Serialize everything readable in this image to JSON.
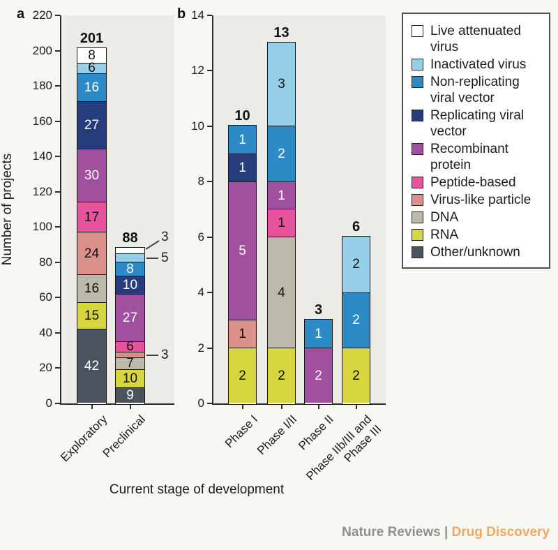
{
  "figure": {
    "panel_a_letter": "a",
    "panel_b_letter": "b",
    "ylabel": "Number of projects",
    "xlabel": "Current stage of development"
  },
  "footer": {
    "journal": "Nature Reviews",
    "separator": " | ",
    "section": "Drug Discovery",
    "journal_color": "#909090",
    "section_color": "#f0a860"
  },
  "palette": {
    "Live attenuated virus": {
      "color": "#ffffff",
      "text": "#111111"
    },
    "Inactivated virus": {
      "color": "#95cfe8",
      "text": "#111111"
    },
    "Non-replicating viral vector": {
      "color": "#2c8bc7",
      "text": "#ffffff"
    },
    "Replicating viral vector": {
      "color": "#263d7d",
      "text": "#ffffff"
    },
    "Recombinant protein": {
      "color": "#a1509f",
      "text": "#ffffff"
    },
    "Peptide-based": {
      "color": "#e8539d",
      "text": "#111111"
    },
    "Virus-like particle": {
      "color": "#db9089",
      "text": "#111111"
    },
    "DNA": {
      "color": "#bcb8aa",
      "text": "#111111"
    },
    "RNA": {
      "color": "#d7d63f",
      "text": "#111111"
    },
    "Other/unknown": {
      "color": "#49545e",
      "text": "#ffffff"
    }
  },
  "legend": {
    "items": [
      {
        "label": "Live attenuated\nvirus",
        "key": "Live attenuated virus"
      },
      {
        "label": "Inactivated virus",
        "key": "Inactivated virus"
      },
      {
        "label": "Non-replicating\nviral vector",
        "key": "Non-replicating viral vector"
      },
      {
        "label": "Replicating viral\nvector",
        "key": "Replicating viral vector"
      },
      {
        "label": "Recombinant\nprotein",
        "key": "Recombinant protein"
      },
      {
        "label": "Peptide-based",
        "key": "Peptide-based"
      },
      {
        "label": "Virus-like particle",
        "key": "Virus-like particle"
      },
      {
        "label": "DNA",
        "key": "DNA"
      },
      {
        "label": "RNA",
        "key": "RNA"
      },
      {
        "label": "Other/unknown",
        "key": "Other/unknown"
      }
    ]
  },
  "chart_data": [
    {
      "panel": "a",
      "type": "bar",
      "stacked": true,
      "ylabel": "Number of projects",
      "ylim": [
        0,
        220
      ],
      "ytick_step": 20,
      "categories": [
        "Exploratory",
        "Preclinical"
      ],
      "totals": [
        201,
        88
      ],
      "series": [
        {
          "name": "Other/unknown",
          "values": [
            42,
            9
          ]
        },
        {
          "name": "RNA",
          "values": [
            15,
            10
          ]
        },
        {
          "name": "DNA",
          "values": [
            16,
            7
          ]
        },
        {
          "name": "Virus-like particle",
          "values": [
            24,
            3
          ]
        },
        {
          "name": "Peptide-based",
          "values": [
            17,
            6
          ]
        },
        {
          "name": "Recombinant protein",
          "values": [
            30,
            27
          ]
        },
        {
          "name": "Replicating viral vector",
          "values": [
            27,
            10
          ]
        },
        {
          "name": "Non-replicating viral vector",
          "values": [
            16,
            8
          ]
        },
        {
          "name": "Inactivated virus",
          "values": [
            6,
            5
          ]
        },
        {
          "name": "Live attenuated virus",
          "values": [
            8,
            3
          ]
        }
      ],
      "callouts": [
        {
          "category": "Preclinical",
          "series": "Live attenuated virus",
          "label": "3",
          "style": "diagonal"
        },
        {
          "category": "Preclinical",
          "series": "Inactivated virus",
          "label": "5",
          "style": "horizontal"
        },
        {
          "category": "Preclinical",
          "series": "Virus-like particle",
          "label": "3",
          "style": "horizontal"
        }
      ]
    },
    {
      "panel": "b",
      "type": "bar",
      "stacked": true,
      "ylim": [
        0,
        14
      ],
      "ytick_step": 2,
      "categories": [
        "Phase I",
        "Phase I/II",
        "Phase II",
        "Phase IIb/III and\nPhase III"
      ],
      "totals": [
        10,
        13,
        3,
        6
      ],
      "series": [
        {
          "name": "Other/unknown",
          "values": [
            0,
            0,
            0,
            0
          ]
        },
        {
          "name": "RNA",
          "values": [
            2,
            2,
            0,
            2
          ]
        },
        {
          "name": "DNA",
          "values": [
            0,
            4,
            0,
            0
          ]
        },
        {
          "name": "Virus-like particle",
          "values": [
            1,
            0,
            0,
            0
          ]
        },
        {
          "name": "Peptide-based",
          "values": [
            0,
            1,
            0,
            0
          ]
        },
        {
          "name": "Recombinant protein",
          "values": [
            5,
            1,
            2,
            0
          ]
        },
        {
          "name": "Replicating viral vector",
          "values": [
            1,
            0,
            0,
            0
          ]
        },
        {
          "name": "Non-replicating viral vector",
          "values": [
            1,
            2,
            1,
            2
          ]
        },
        {
          "name": "Inactivated virus",
          "values": [
            0,
            3,
            0,
            2
          ]
        },
        {
          "name": "Live attenuated virus",
          "values": [
            0,
            0,
            0,
            0
          ]
        }
      ],
      "callouts": []
    }
  ]
}
